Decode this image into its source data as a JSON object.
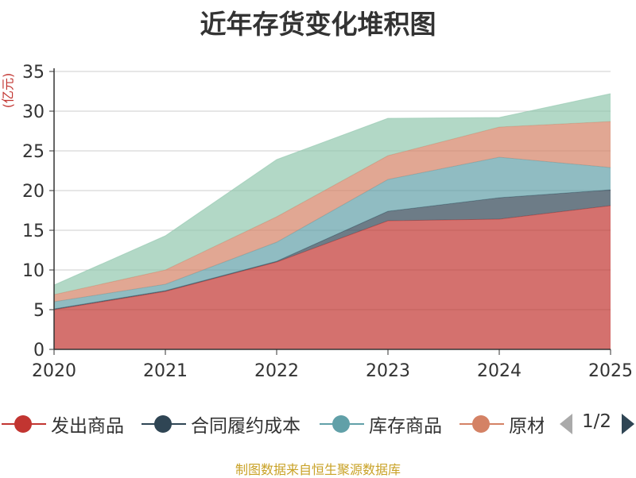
{
  "chart_data": {
    "type": "area",
    "stacked": true,
    "title": "近年存货变化堆积图",
    "ylabel": "(亿元)",
    "categories": [
      "2020",
      "2021",
      "2022",
      "2023",
      "2024",
      "2025"
    ],
    "ylim": [
      0,
      35
    ],
    "yticks": [
      0,
      5,
      10,
      15,
      20,
      25,
      30,
      35
    ],
    "grid": true,
    "legend_position": "bottom",
    "series": [
      {
        "name": "发出商品",
        "color": "#c23531",
        "values": [
          5.0,
          7.3,
          11.0,
          16.2,
          16.4,
          18.1
        ]
      },
      {
        "name": "合同履约成本",
        "color": "#2f4554",
        "values": [
          0.1,
          0.1,
          0.1,
          1.2,
          2.7,
          2.0
        ]
      },
      {
        "name": "库存商品",
        "color": "#61a0a8",
        "values": [
          0.9,
          0.8,
          2.4,
          4.0,
          5.1,
          2.8
        ]
      },
      {
        "name": "原材料",
        "color": "#d48265",
        "values": [
          0.9,
          1.8,
          3.2,
          3.0,
          3.8,
          5.8
        ]
      },
      {
        "name": "",
        "color": "#91c7ae",
        "values": [
          1.2,
          4.3,
          7.2,
          4.7,
          1.2,
          3.5
        ]
      }
    ]
  },
  "legend": {
    "items": [
      {
        "label": "发出商品"
      },
      {
        "label": "合同履约成本"
      },
      {
        "label": "库存商品"
      },
      {
        "label": "原材料"
      }
    ],
    "pager": {
      "text": "1/2"
    }
  },
  "footer": {
    "source": "制图数据来自恒生聚源数据库"
  }
}
